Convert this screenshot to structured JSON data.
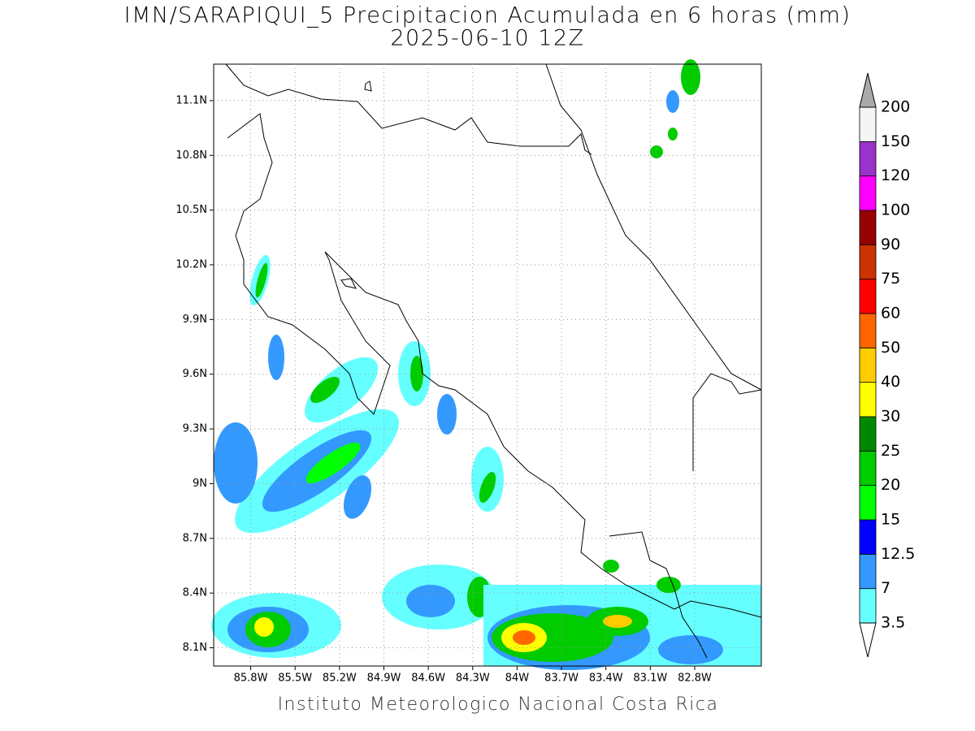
{
  "chart_data": {
    "type": "contour",
    "title": "IMN/SARAPIQUI_5 Precipitacion Acumulada en 6 horas (mm)",
    "subtitle": "2025-06-10 12Z",
    "footer": "Instituto Meteorologico Nacional Costa Rica",
    "xlim": [
      -86.05,
      -82.35
    ],
    "ylim": [
      8.0,
      11.3
    ],
    "xticks": [
      {
        "value": -85.8,
        "label": "85.8W"
      },
      {
        "value": -85.5,
        "label": "85.5W"
      },
      {
        "value": -85.2,
        "label": "85.2W"
      },
      {
        "value": -84.9,
        "label": "84.9W"
      },
      {
        "value": -84.6,
        "label": "84.6W"
      },
      {
        "value": -84.3,
        "label": "84.3W"
      },
      {
        "value": -84.0,
        "label": "84W"
      },
      {
        "value": -83.7,
        "label": "83.7W"
      },
      {
        "value": -83.4,
        "label": "83.4W"
      },
      {
        "value": -83.1,
        "label": "83.1W"
      },
      {
        "value": -82.8,
        "label": "82.8W"
      }
    ],
    "yticks": [
      {
        "value": 8.1,
        "label": "8.1N"
      },
      {
        "value": 8.4,
        "label": "8.4N"
      },
      {
        "value": 8.7,
        "label": "8.7N"
      },
      {
        "value": 9.0,
        "label": "9N"
      },
      {
        "value": 9.3,
        "label": "9.3N"
      },
      {
        "value": 9.6,
        "label": "9.6N"
      },
      {
        "value": 9.9,
        "label": "9.9N"
      },
      {
        "value": 10.2,
        "label": "10.2N"
      },
      {
        "value": 10.5,
        "label": "10.5N"
      },
      {
        "value": 10.8,
        "label": "10.8N"
      },
      {
        "value": 11.1,
        "label": "11.1N"
      }
    ],
    "grid": true,
    "levels": [
      3.5,
      7,
      12.5,
      15,
      20,
      25,
      30,
      40,
      50,
      60,
      75,
      90,
      100,
      120,
      150,
      200
    ],
    "colors": [
      "#66ffff",
      "#3399ff",
      "#0000ff",
      "#00ff00",
      "#00cc00",
      "#008800",
      "#ffff00",
      "#ffcc00",
      "#ff6600",
      "#ff0000",
      "#cc3300",
      "#990000",
      "#ff00ff",
      "#9933cc",
      "#f5f5f5"
    ],
    "under_color": "#ffffff",
    "over_color": "#aaaaaa"
  }
}
